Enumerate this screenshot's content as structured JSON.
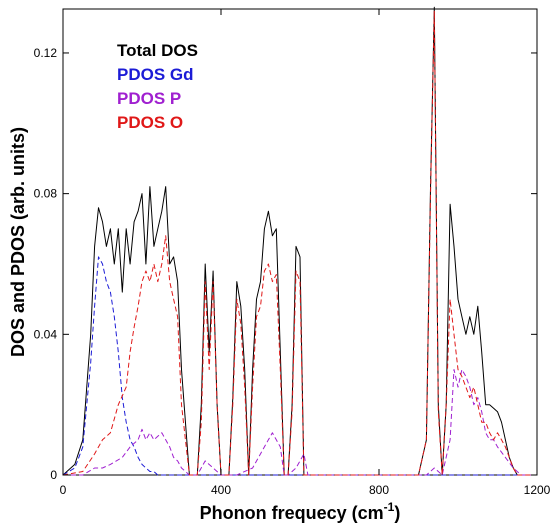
{
  "chart_data": {
    "type": "line",
    "title": "",
    "xlabel": "Phonon frequecy (cm",
    "xlabel_sup": "-1",
    "xlabel_end": ")",
    "ylabel": "DOS and PDOS (arb. units)",
    "xlim": [
      0,
      1200
    ],
    "ylim": [
      0,
      0.1325
    ],
    "x_ticks": [
      0,
      400,
      800,
      1200
    ],
    "y_ticks": [
      0,
      0.04,
      0.08,
      0.12
    ],
    "x_tick_labels": [
      "0",
      "400",
      "800",
      "1200"
    ],
    "y_tick_labels": [
      "0",
      "0.04",
      "0.08",
      "0.12"
    ],
    "grid": false,
    "legend_position": "top-left",
    "series": [
      {
        "name": "Total DOS",
        "color": "#000000",
        "style": "solid",
        "x": [
          0,
          30,
          50,
          70,
          80,
          90,
          100,
          110,
          120,
          130,
          140,
          150,
          160,
          170,
          180,
          190,
          200,
          210,
          220,
          230,
          240,
          250,
          260,
          270,
          280,
          290,
          300,
          320,
          340,
          350,
          360,
          370,
          380,
          390,
          400,
          410,
          420,
          430,
          440,
          450,
          460,
          470,
          480,
          490,
          500,
          510,
          520,
          530,
          540,
          550,
          560,
          570,
          580,
          590,
          600,
          610,
          620,
          640,
          900,
          920,
          930,
          940,
          950,
          960,
          970,
          980,
          990,
          1000,
          1010,
          1020,
          1030,
          1040,
          1050,
          1060,
          1070,
          1080,
          1090,
          1100,
          1110,
          1120,
          1130,
          1140,
          1150,
          1160,
          1170,
          1200
        ],
        "y": [
          0,
          0.003,
          0.01,
          0.04,
          0.065,
          0.076,
          0.072,
          0.065,
          0.07,
          0.06,
          0.07,
          0.052,
          0.07,
          0.06,
          0.072,
          0.075,
          0.08,
          0.06,
          0.082,
          0.065,
          0.07,
          0.075,
          0.082,
          0.06,
          0.062,
          0.055,
          0.03,
          0.0,
          0.0,
          0.02,
          0.06,
          0.035,
          0.058,
          0.02,
          0.0,
          0.0,
          0.0,
          0.022,
          0.055,
          0.048,
          0.03,
          0.0,
          0.03,
          0.05,
          0.055,
          0.07,
          0.075,
          0.068,
          0.07,
          0.035,
          0.0,
          0.0,
          0.02,
          0.065,
          0.062,
          0.0,
          0.0,
          0.0,
          0.0,
          0.01,
          0.08,
          0.133,
          0.02,
          0.0,
          0.02,
          0.077,
          0.065,
          0.05,
          0.045,
          0.04,
          0.045,
          0.04,
          0.048,
          0.035,
          0.02,
          0.02,
          0.019,
          0.018,
          0.015,
          0.01,
          0.005,
          0.002,
          0.0,
          0.0,
          0.0,
          0.0
        ]
      },
      {
        "name": "PDOS Gd",
        "color": "#1c1cd6",
        "style": "dashed",
        "x": [
          0,
          30,
          50,
          70,
          80,
          90,
          100,
          110,
          120,
          130,
          140,
          150,
          160,
          170,
          180,
          190,
          200,
          210,
          220,
          230,
          240,
          250,
          260,
          280,
          300,
          320,
          340,
          400,
          1200
        ],
        "y": [
          0,
          0.002,
          0.008,
          0.032,
          0.048,
          0.062,
          0.06,
          0.055,
          0.052,
          0.045,
          0.035,
          0.022,
          0.015,
          0.01,
          0.008,
          0.005,
          0.003,
          0.002,
          0.001,
          0.001,
          0.0,
          0.0,
          0.0,
          0.0,
          0.0,
          0.0,
          0.0,
          0.0,
          0.0
        ]
      },
      {
        "name": "PDOS  P",
        "color": "#a020d0",
        "style": "dashed",
        "x": [
          0,
          50,
          80,
          100,
          120,
          150,
          170,
          190,
          200,
          210,
          220,
          230,
          240,
          250,
          260,
          270,
          280,
          290,
          300,
          320,
          340,
          360,
          380,
          400,
          440,
          480,
          500,
          510,
          520,
          530,
          540,
          550,
          560,
          570,
          590,
          600,
          610,
          620,
          640,
          920,
          930,
          940,
          950,
          960,
          980,
          990,
          1000,
          1010,
          1020,
          1030,
          1040,
          1050,
          1060,
          1070,
          1080,
          1090,
          1100,
          1120,
          1140,
          1160,
          1200
        ],
        "y": [
          0,
          0.0,
          0.002,
          0.002,
          0.003,
          0.005,
          0.008,
          0.01,
          0.013,
          0.01,
          0.012,
          0.01,
          0.011,
          0.012,
          0.01,
          0.008,
          0.005,
          0.004,
          0.002,
          0.0,
          0.0,
          0.004,
          0.002,
          0.0,
          0.0,
          0.002,
          0.006,
          0.008,
          0.01,
          0.012,
          0.01,
          0.008,
          0.0,
          0.0,
          0.002,
          0.004,
          0.006,
          0.0,
          0.0,
          0.0,
          0.001,
          0.002,
          0.001,
          0.0,
          0.01,
          0.03,
          0.025,
          0.03,
          0.028,
          0.025,
          0.02,
          0.022,
          0.018,
          0.012,
          0.01,
          0.01,
          0.008,
          0.005,
          0.002,
          0.0,
          0.0
        ]
      },
      {
        "name": "PDOS  O",
        "color": "#e01818",
        "style": "dashed",
        "x": [
          0,
          50,
          80,
          100,
          120,
          140,
          160,
          170,
          180,
          190,
          200,
          210,
          220,
          230,
          240,
          250,
          260,
          270,
          280,
          290,
          300,
          320,
          340,
          350,
          360,
          370,
          380,
          390,
          400,
          420,
          430,
          440,
          450,
          460,
          470,
          480,
          490,
          500,
          510,
          520,
          530,
          540,
          550,
          560,
          570,
          580,
          590,
          600,
          610,
          620,
          640,
          900,
          920,
          930,
          940,
          950,
          960,
          970,
          980,
          990,
          1000,
          1010,
          1020,
          1030,
          1040,
          1050,
          1060,
          1070,
          1080,
          1090,
          1100,
          1110,
          1120,
          1130,
          1140,
          1150,
          1160,
          1170,
          1200
        ],
        "y": [
          0,
          0.001,
          0.006,
          0.01,
          0.012,
          0.02,
          0.025,
          0.035,
          0.042,
          0.048,
          0.055,
          0.058,
          0.055,
          0.06,
          0.055,
          0.06,
          0.068,
          0.055,
          0.05,
          0.045,
          0.02,
          0.0,
          0.0,
          0.015,
          0.055,
          0.03,
          0.055,
          0.02,
          0.0,
          0.0,
          0.02,
          0.05,
          0.043,
          0.025,
          0.0,
          0.025,
          0.045,
          0.048,
          0.058,
          0.06,
          0.055,
          0.057,
          0.03,
          0.0,
          0.0,
          0.018,
          0.058,
          0.055,
          0.0,
          0.0,
          0.0,
          0.0,
          0.01,
          0.078,
          0.132,
          0.018,
          0.0,
          0.02,
          0.05,
          0.04,
          0.03,
          0.028,
          0.025,
          0.022,
          0.025,
          0.02,
          0.015,
          0.015,
          0.012,
          0.01,
          0.012,
          0.01,
          0.008,
          0.005,
          0.002,
          0.0,
          0.0,
          0.0,
          0.0
        ]
      }
    ]
  }
}
